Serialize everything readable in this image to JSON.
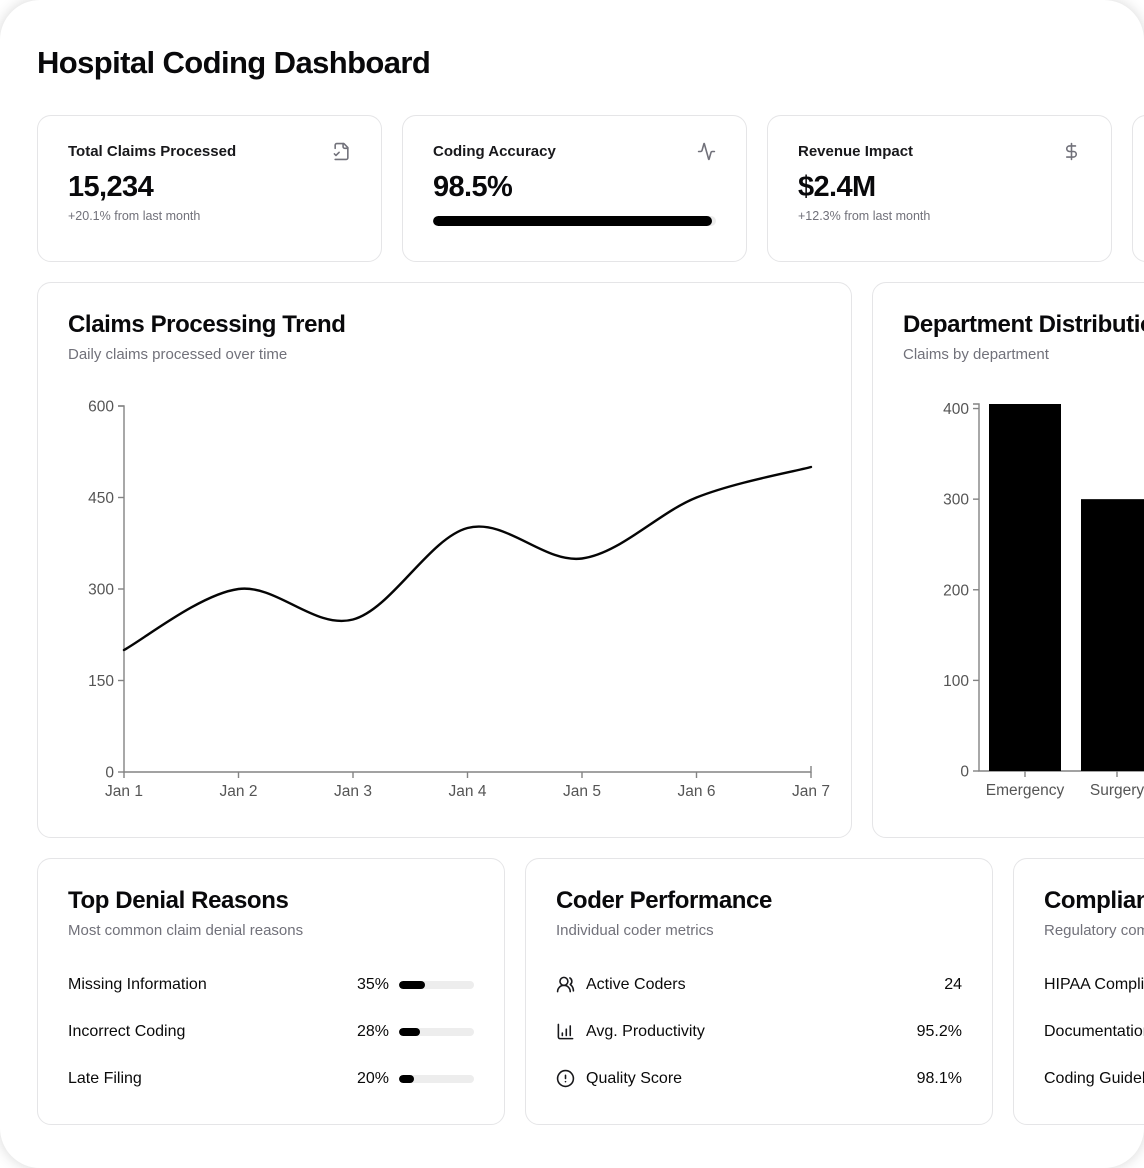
{
  "page": {
    "title": "Hospital Coding Dashboard"
  },
  "colors": {
    "accent": "#000000",
    "muted_text": "#71717a",
    "card_border": "#e5e5e7",
    "axis_line": "#838383",
    "axis_tick_text": "#555555",
    "progress_track": "#ededed"
  },
  "stats": [
    {
      "label": "Total Claims Processed",
      "icon": "file-check-icon",
      "value": "15,234",
      "subtext": "+20.1% from last month"
    },
    {
      "label": "Coding Accuracy",
      "icon": "activity-icon",
      "value": "98.5%",
      "progress_pct": 98.5
    },
    {
      "label": "Revenue Impact",
      "icon": "dollar-sign-icon",
      "value": "$2.4M",
      "subtext": "+12.3% from last month"
    },
    {
      "label": "",
      "value": "",
      "subtext": ""
    }
  ],
  "chart_data": [
    {
      "type": "line",
      "title": "Claims Processing Trend",
      "subtitle": "Daily claims processed over time",
      "x": [
        "Jan 1",
        "Jan 2",
        "Jan 3",
        "Jan 4",
        "Jan 5",
        "Jan 6",
        "Jan 7"
      ],
      "values": [
        200,
        300,
        250,
        400,
        350,
        450,
        500
      ],
      "xlabel": "",
      "ylabel": "",
      "ylim": [
        0,
        600
      ],
      "yticks": [
        0,
        150,
        300,
        450,
        600
      ],
      "grid": false,
      "legend": false,
      "line_color": "#000000"
    },
    {
      "type": "bar",
      "title": "Department Distribution",
      "subtitle": "Claims by department",
      "categories": [
        "Emergency",
        "Surgery"
      ],
      "values": [
        405,
        300
      ],
      "xlabel": "",
      "ylabel": "",
      "ylim": [
        0,
        405
      ],
      "yticks": [
        0,
        100,
        200,
        300,
        400
      ],
      "grid": false,
      "legend": false,
      "bar_color": "#000000",
      "clipped_right": true
    }
  ],
  "denial_reasons": {
    "title": "Top Denial Reasons",
    "subtitle": "Most common claim denial reasons",
    "items": [
      {
        "label": "Missing Information",
        "pct_label": "35%",
        "pct": 35
      },
      {
        "label": "Incorrect Coding",
        "pct_label": "28%",
        "pct": 28
      },
      {
        "label": "Late Filing",
        "pct_label": "20%",
        "pct": 20
      }
    ]
  },
  "coder_performance": {
    "title": "Coder Performance",
    "subtitle": "Individual coder metrics",
    "rows": [
      {
        "icon": "users-icon",
        "label": "Active Coders",
        "value": "24"
      },
      {
        "icon": "bar-chart-icon",
        "label": "Avg. Productivity",
        "value": "95.2%"
      },
      {
        "icon": "alert-circle-icon",
        "label": "Quality Score",
        "value": "98.1%"
      }
    ]
  },
  "compliance": {
    "title": "Compliance",
    "subtitle": "Regulatory compliance",
    "rows": [
      {
        "label": "HIPAA Compliance"
      },
      {
        "label": "Documentation"
      },
      {
        "label": "Coding Guidelines"
      }
    ]
  }
}
